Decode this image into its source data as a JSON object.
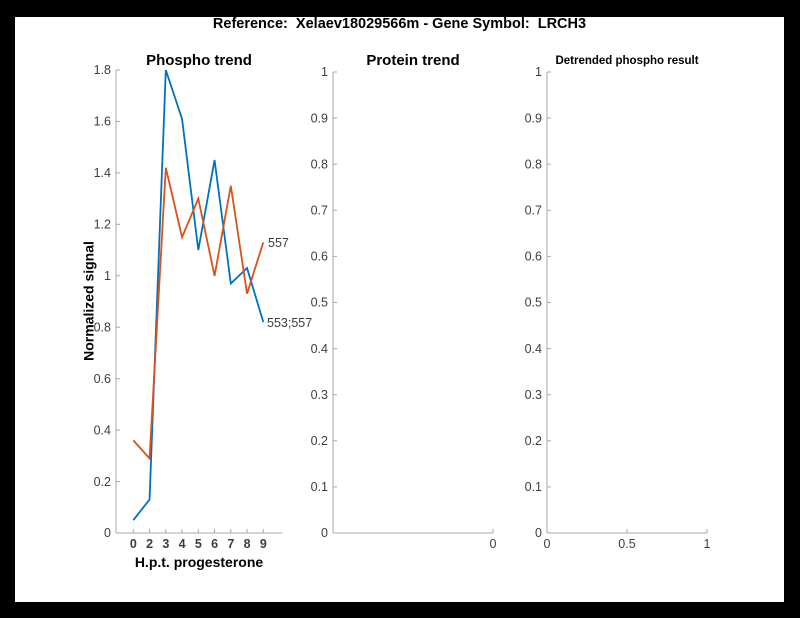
{
  "window": {
    "background": "#000000",
    "figure_background": "#ffffff"
  },
  "header": {
    "title": "Reference:  Xelaev18029566m - Gene Symbol:  LRCH3"
  },
  "colors": {
    "blue": "#0072BD",
    "orange": "#D95319",
    "axis": "#a8a8a8",
    "tick_label": "#3d3d3d"
  },
  "chart_data": [
    {
      "id": "phospho-trend",
      "type": "line",
      "title": "Phospho trend",
      "xlabel": "H.p.t. progesterone",
      "ylabel": "Normalized signal",
      "x_tick_labels": [
        "0",
        "2",
        "3",
        "4",
        "5",
        "6",
        "7",
        "8",
        "9"
      ],
      "ylim": [
        0,
        1.8
      ],
      "y_tick_labels": [
        "0",
        "0.2",
        "0.4",
        "0.6",
        "0.8",
        "1",
        "1.2",
        "1.4",
        "1.6",
        "1.8"
      ],
      "grid": false,
      "legend": "none",
      "series": [
        {
          "name": "553;557",
          "color_key": "blue",
          "values": [
            0.05,
            0.13,
            1.8,
            1.61,
            1.1,
            1.45,
            0.97,
            1.03,
            0.82
          ]
        },
        {
          "name": "557",
          "color_key": "orange",
          "values": [
            0.36,
            0.29,
            1.42,
            1.15,
            1.3,
            1.0,
            1.35,
            0.93,
            1.13
          ]
        }
      ]
    },
    {
      "id": "protein-trend",
      "type": "line",
      "title": "Protein trend",
      "xlabel": "",
      "ylabel": "",
      "ylim": [
        0,
        1
      ],
      "y_tick_labels": [
        "0",
        "0.1",
        "0.2",
        "0.3",
        "0.4",
        "0.5",
        "0.6",
        "0.7",
        "0.8",
        "0.9",
        "1"
      ],
      "x_ticks": [
        {
          "frac": 1,
          "label": "0"
        }
      ],
      "grid": false,
      "legend": "none",
      "series": []
    },
    {
      "id": "detrended-phospho-result",
      "type": "line",
      "title": "Detrended phospho result",
      "xlabel": "",
      "ylabel": "",
      "ylim": [
        0,
        1
      ],
      "y_tick_labels": [
        "0",
        "0.1",
        "0.2",
        "0.3",
        "0.4",
        "0.5",
        "0.6",
        "0.7",
        "0.8",
        "0.9",
        "1"
      ],
      "x_ticks": [
        {
          "frac": 0,
          "label": "0"
        },
        {
          "frac": 0.5,
          "label": "0.5"
        },
        {
          "frac": 1,
          "label": "1"
        }
      ],
      "grid": false,
      "legend": "none",
      "series": []
    }
  ]
}
